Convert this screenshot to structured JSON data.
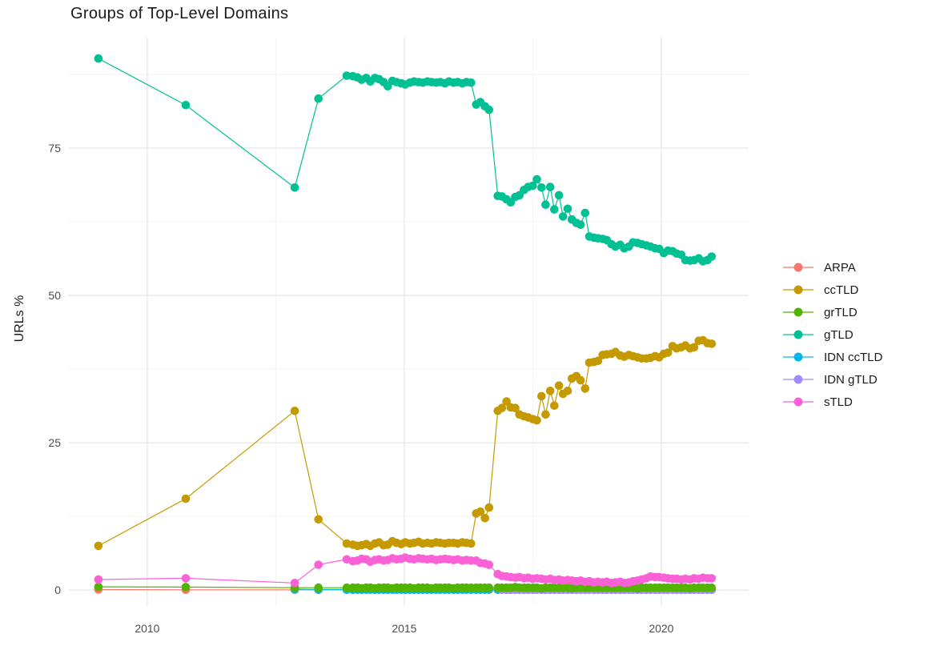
{
  "title": "Groups of Top-Level Domains",
  "chart_data": {
    "type": "line",
    "title": "Groups of Top-Level Domains",
    "xlabel": "",
    "ylabel": "URLs %",
    "x_ticks": [
      2010,
      2015,
      2020
    ],
    "x_minor_ticks": [
      2012.5,
      2017.5
    ],
    "y_ticks": [
      0,
      25,
      50,
      75
    ],
    "y_minor_ticks": [
      12.5,
      37.5,
      62.5,
      87.5
    ],
    "xlim": [
      2008.46,
      2021.7
    ],
    "ylim": [
      -2.7,
      93.75
    ],
    "grid": "major+minor",
    "legend_position": "right",
    "background": "#ffffff",
    "grid_major_color": "#e7e7e7",
    "grid_minor_color": "#f1f1f1",
    "x": [
      2009.05,
      2010.75,
      2012.87,
      2013.33,
      2013.88,
      2014.0,
      2014.09,
      2014.17,
      2014.26,
      2014.34,
      2014.43,
      2014.51,
      2014.6,
      2014.68,
      2014.77,
      2014.85,
      2014.94,
      2015.02,
      2015.11,
      2015.19,
      2015.28,
      2015.36,
      2015.45,
      2015.53,
      2015.62,
      2015.7,
      2015.79,
      2015.87,
      2015.96,
      2016.04,
      2016.13,
      2016.21,
      2016.3,
      2016.4,
      2016.48,
      2016.57,
      2016.65,
      2016.82,
      2016.9,
      2016.99,
      2017.07,
      2017.16,
      2017.24,
      2017.33,
      2017.41,
      2017.5,
      2017.58,
      2017.67,
      2017.75,
      2017.84,
      2017.92,
      2018.01,
      2018.09,
      2018.18,
      2018.26,
      2018.35,
      2018.43,
      2018.52,
      2018.6,
      2018.69,
      2018.77,
      2018.86,
      2018.94,
      2019.03,
      2019.11,
      2019.2,
      2019.28,
      2019.37,
      2019.45,
      2019.54,
      2019.62,
      2019.71,
      2019.79,
      2019.88,
      2019.96,
      2020.05,
      2020.13,
      2020.22,
      2020.3,
      2020.39,
      2020.47,
      2020.56,
      2020.64,
      2020.73,
      2020.81,
      2020.9,
      2020.98
    ],
    "series": [
      {
        "name": "ARPA",
        "color": "#F8766D",
        "values": [
          0.1,
          0.05,
          0.05,
          0.05,
          0.05,
          0.05,
          0.05,
          0.05,
          0.05,
          0.05,
          0.05,
          0.05,
          0.05,
          0.05,
          0.05,
          0.05,
          0.05,
          0.05,
          0.05,
          0.05,
          0.05,
          0.05,
          0.05,
          0.05,
          0.05,
          0.05,
          0.05,
          0.05,
          0.05,
          0.05,
          0.05,
          0.05,
          0.05,
          0.05,
          0.05,
          0.05,
          0.05,
          0.05,
          0.05,
          0.05,
          0.05,
          0.05,
          0.05,
          0.05,
          0.05,
          0.05,
          0.05,
          0.05,
          0.05,
          0.05,
          0.05,
          0.05,
          0.05,
          0.05,
          0.05,
          0.05,
          0.05,
          0.05,
          0.05,
          0.05,
          0.05,
          0.05,
          0.05,
          0.05,
          0.05,
          0.05,
          0.05,
          0.05,
          0.05,
          0.05,
          0.05,
          0.05,
          0.05,
          0.05,
          0.05,
          0.05,
          0.05,
          0.05,
          0.05,
          0.05,
          0.05,
          0.05,
          0.05,
          0.05,
          0.05,
          0.05,
          0.05
        ]
      },
      {
        "name": "ccTLD",
        "color": "#C49A00",
        "values": [
          7.5,
          15.5,
          30.4,
          12.0,
          7.9,
          7.7,
          7.5,
          7.6,
          7.8,
          7.5,
          7.9,
          8.1,
          7.6,
          7.7,
          8.3,
          8.0,
          7.8,
          8.1,
          7.9,
          8.0,
          8.2,
          7.9,
          8.0,
          7.9,
          8.1,
          8.0,
          7.9,
          8.0,
          8.0,
          7.9,
          8.1,
          8.0,
          7.9,
          13.0,
          13.3,
          12.2,
          14.0,
          30.4,
          30.9,
          32.0,
          31.0,
          30.9,
          29.8,
          29.5,
          29.3,
          29.0,
          28.8,
          32.9,
          29.8,
          33.8,
          31.3,
          34.7,
          33.3,
          33.8,
          35.9,
          36.3,
          35.6,
          34.2,
          38.6,
          38.7,
          38.9,
          39.9,
          40.0,
          40.1,
          40.4,
          39.8,
          39.6,
          39.9,
          39.7,
          39.5,
          39.3,
          39.3,
          39.4,
          39.7,
          39.5,
          40.1,
          40.3,
          41.4,
          41.0,
          41.2,
          41.5,
          41.0,
          41.2,
          42.3,
          42.4,
          41.9,
          41.8
        ]
      },
      {
        "name": "grTLD",
        "color": "#53B400",
        "values": [
          0.55,
          0.5,
          0.4,
          0.4,
          0.4,
          0.4,
          0.4,
          0.3,
          0.4,
          0.4,
          0.3,
          0.4,
          0.4,
          0.4,
          0.3,
          0.4,
          0.4,
          0.4,
          0.4,
          0.3,
          0.4,
          0.4,
          0.4,
          0.3,
          0.4,
          0.4,
          0.4,
          0.4,
          0.3,
          0.4,
          0.4,
          0.4,
          0.4,
          0.4,
          0.4,
          0.4,
          0.4,
          0.4,
          0.4,
          0.4,
          0.4,
          0.5,
          0.4,
          0.4,
          0.4,
          0.4,
          0.4,
          0.3,
          0.4,
          0.4,
          0.4,
          0.4,
          0.4,
          0.4,
          0.3,
          0.4,
          0.4,
          0.4,
          0.4,
          0.4,
          0.4,
          0.4,
          0.4,
          0.4,
          0.4,
          0.4,
          0.4,
          0.4,
          0.4,
          0.3,
          0.4,
          0.4,
          0.4,
          0.4,
          0.4,
          0.4,
          0.4,
          0.4,
          0.4,
          0.4,
          0.4,
          0.3,
          0.4,
          0.4,
          0.4,
          0.4,
          0.4
        ]
      },
      {
        "name": "gTLD",
        "color": "#00C094",
        "values": [
          90.2,
          82.3,
          68.3,
          83.4,
          87.3,
          87.2,
          87.0,
          86.6,
          86.9,
          86.3,
          86.9,
          86.7,
          86.2,
          85.5,
          86.4,
          86.2,
          86.0,
          85.8,
          86.1,
          86.3,
          86.2,
          86.1,
          86.3,
          86.2,
          86.1,
          86.2,
          86.0,
          86.3,
          86.1,
          86.2,
          86.0,
          86.2,
          86.1,
          82.4,
          82.8,
          82.1,
          81.5,
          66.9,
          66.8,
          66.3,
          65.8,
          66.7,
          67.0,
          67.9,
          68.4,
          68.6,
          69.7,
          68.3,
          65.4,
          68.4,
          64.6,
          67.0,
          63.4,
          64.7,
          62.9,
          62.3,
          62.0,
          64.0,
          60.0,
          59.8,
          59.7,
          59.6,
          59.4,
          58.7,
          58.3,
          58.6,
          58.0,
          58.3,
          59.0,
          58.9,
          58.7,
          58.5,
          58.3,
          58.0,
          57.9,
          57.2,
          57.6,
          57.5,
          57.1,
          56.9,
          56.0,
          55.9,
          56.0,
          56.3,
          55.8,
          56.0,
          56.6
        ]
      },
      {
        "name": "IDN ccTLD",
        "color": "#00B6EB",
        "values": [
          null,
          null,
          0.15,
          0.1,
          0.1,
          0.1,
          0.1,
          0.1,
          0.1,
          0.1,
          0.1,
          0.1,
          0.1,
          0.1,
          0.1,
          0.1,
          0.1,
          0.1,
          0.1,
          0.1,
          0.1,
          0.1,
          0.1,
          0.1,
          0.1,
          0.1,
          0.1,
          0.1,
          0.1,
          0.1,
          0.1,
          0.1,
          0.1,
          0.1,
          0.1,
          0.1,
          0.1,
          0.1,
          0.1,
          0.1,
          0.1,
          0.1,
          0.1,
          0.1,
          0.1,
          0.1,
          0.1,
          0.1,
          0.1,
          0.1,
          0.1,
          0.1,
          0.1,
          0.1,
          0.1,
          0.1,
          0.1,
          0.1,
          0.1,
          0.1,
          0.1,
          0.1,
          0.1,
          0.1,
          0.1,
          0.1,
          0.1,
          0.1,
          0.1,
          0.1,
          0.1,
          0.1,
          0.1,
          0.1,
          0.1,
          0.1,
          0.1,
          0.1,
          0.1,
          0.1,
          0.1,
          0.1,
          0.1,
          0.1,
          0.1,
          0.1,
          0.1
        ]
      },
      {
        "name": "IDN gTLD",
        "color": "#A58AFF",
        "values": [
          null,
          null,
          null,
          null,
          null,
          null,
          null,
          null,
          null,
          null,
          null,
          null,
          null,
          null,
          null,
          null,
          null,
          null,
          null,
          null,
          null,
          null,
          null,
          null,
          null,
          null,
          null,
          null,
          null,
          null,
          null,
          null,
          null,
          null,
          null,
          null,
          null,
          null,
          0.05,
          0.05,
          0.05,
          0.05,
          0.05,
          0.05,
          0.05,
          0.05,
          0.05,
          0.05,
          0.05,
          0.05,
          0.05,
          0.05,
          0.05,
          0.05,
          0.05,
          0.05,
          0.05,
          0.05,
          0.05,
          0.05,
          0.05,
          0.05,
          0.05,
          0.05,
          0.05,
          0.05,
          0.05,
          0.05,
          0.05,
          0.05,
          0.05,
          0.05,
          0.05,
          0.05,
          0.05,
          0.05,
          0.05,
          0.05,
          0.05,
          0.05,
          0.05,
          0.05,
          0.05,
          0.05,
          0.05,
          0.05,
          0.05
        ]
      },
      {
        "name": "sTLD",
        "color": "#FB61D7",
        "values": [
          1.8,
          2.0,
          1.2,
          4.3,
          5.2,
          4.9,
          5.0,
          5.3,
          5.2,
          4.8,
          5.1,
          5.2,
          5.0,
          5.1,
          5.4,
          5.2,
          5.3,
          5.5,
          5.3,
          5.2,
          5.4,
          5.3,
          5.2,
          5.3,
          5.1,
          5.2,
          5.3,
          5.2,
          5.1,
          5.2,
          5.0,
          5.1,
          5.0,
          5.0,
          4.6,
          4.5,
          4.3,
          2.7,
          2.4,
          2.3,
          2.2,
          2.1,
          2.2,
          2.0,
          2.1,
          1.9,
          2.0,
          1.9,
          1.8,
          1.9,
          1.7,
          1.8,
          1.6,
          1.7,
          1.6,
          1.5,
          1.6,
          1.4,
          1.5,
          1.3,
          1.4,
          1.3,
          1.4,
          1.2,
          1.3,
          1.4,
          1.2,
          1.3,
          1.5,
          1.6,
          1.8,
          2.0,
          2.3,
          2.2,
          2.2,
          2.1,
          2.0,
          1.9,
          1.9,
          1.8,
          1.9,
          1.8,
          2.0,
          1.9,
          2.1,
          2.0,
          2.0
        ]
      }
    ]
  }
}
